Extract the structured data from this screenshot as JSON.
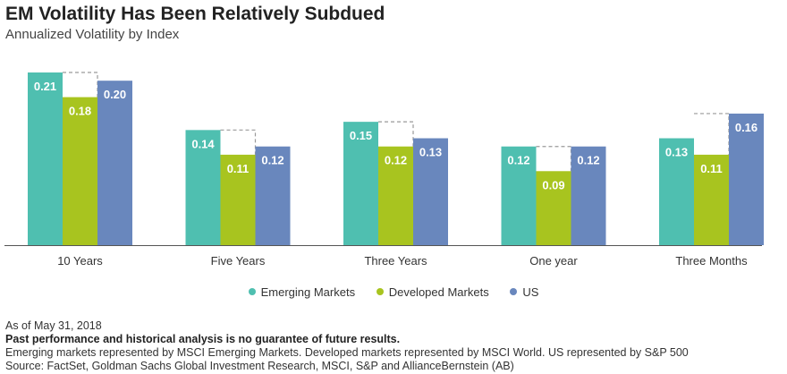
{
  "title": "EM Volatility Has Been Relatively Subdued",
  "subtitle": "Annualized Volatility by Index",
  "colors": {
    "emerging": "#4fbfb0",
    "developed": "#a8c41f",
    "us": "#6987bd",
    "dashed": "#9a9a9a",
    "axis": "#555555",
    "label": "#ffffff"
  },
  "chart_data": {
    "type": "bar",
    "title": "EM Volatility Has Been Relatively Subdued",
    "subtitle": "Annualized Volatility by Index",
    "categories": [
      "10 Years",
      "Five Years",
      "Three Years",
      "One year",
      "Three Months"
    ],
    "series": [
      {
        "name": "Emerging Markets",
        "values": [
          0.21,
          0.14,
          0.15,
          0.12,
          0.13
        ]
      },
      {
        "name": "Developed Markets",
        "values": [
          0.18,
          0.11,
          0.12,
          0.09,
          0.11
        ]
      },
      {
        "name": "US",
        "values": [
          0.2,
          0.12,
          0.13,
          0.12,
          0.16
        ]
      }
    ],
    "value_labels": [
      [
        "0.21",
        "0.14",
        "0.15",
        "0.12",
        "0.13"
      ],
      [
        "0.18",
        "0.11",
        "0.12",
        "0.09",
        "0.11"
      ],
      [
        "0.20",
        "0.12",
        "0.13",
        "0.12",
        "0.16"
      ]
    ],
    "dashed_outline_on": "Developed Markets",
    "dashed_outline_height": "max of Emerging Markets and US",
    "ylim": [
      0,
      0.21
    ],
    "xlabel": "",
    "ylabel": "",
    "grid": false,
    "legend_position": "bottom-center"
  },
  "legend": [
    {
      "label": "Emerging Markets",
      "color_key": "emerging"
    },
    {
      "label": "Developed Markets",
      "color_key": "developed"
    },
    {
      "label": "US",
      "color_key": "us"
    }
  ],
  "footer": {
    "as_of": "As of May 31, 2018",
    "disclaimer": "Past performance and historical analysis is no guarantee of future results.",
    "note": "Emerging markets represented by MSCI Emerging Markets. Developed markets represented by MSCI World. US represented by S&P 500",
    "source": "Source: FactSet, Goldman Sachs Global Investment Research, MSCI, S&P and AllianceBernstein (AB)"
  }
}
